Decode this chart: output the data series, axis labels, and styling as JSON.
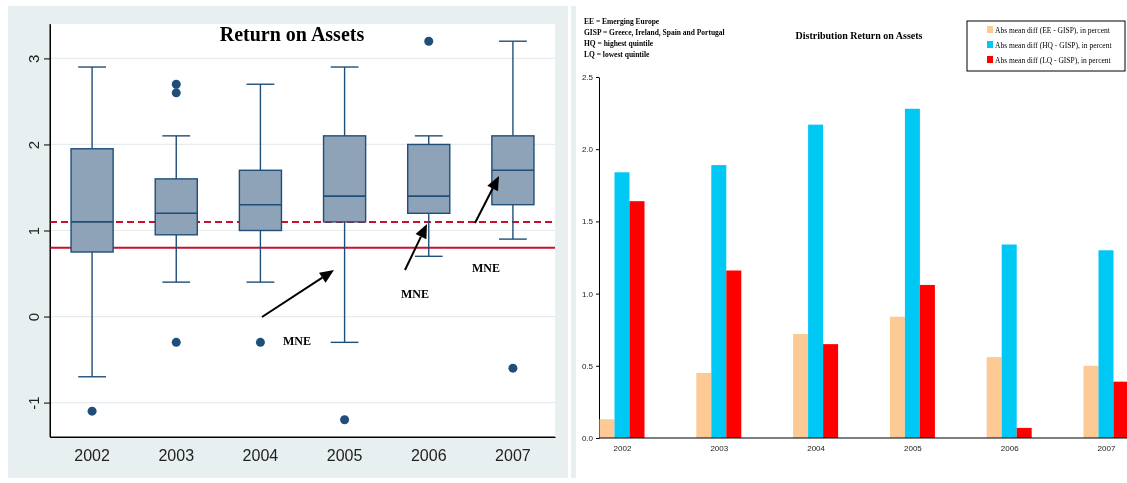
{
  "chart_data": [
    {
      "type": "box",
      "title": "Return on Assets",
      "categories": [
        "2002",
        "2003",
        "2004",
        "2005",
        "2006",
        "2007"
      ],
      "color": "#8fa3b8",
      "ylim": [
        -1.4,
        3.4
      ],
      "yticks": [
        -1,
        0,
        1,
        2,
        3
      ],
      "grid": "y",
      "boxes": [
        {
          "low": -0.7,
          "q1": 0.75,
          "median": 1.1,
          "q3": 1.95,
          "high": 2.9,
          "outliers": [
            -1.1
          ]
        },
        {
          "low": 0.4,
          "q1": 0.95,
          "median": 1.2,
          "q3": 1.6,
          "high": 2.1,
          "outliers": [
            2.7,
            2.6,
            -0.3
          ]
        },
        {
          "low": 0.4,
          "q1": 1.0,
          "median": 1.3,
          "q3": 1.7,
          "high": 2.7,
          "outliers": [
            -0.3
          ]
        },
        {
          "low": -0.3,
          "q1": 1.1,
          "median": 1.4,
          "q3": 2.1,
          "high": 2.9,
          "outliers": [
            -1.2
          ]
        },
        {
          "low": 0.7,
          "q1": 1.2,
          "median": 1.4,
          "q3": 2.0,
          "high": 2.1,
          "outliers": [
            3.2
          ]
        },
        {
          "low": 0.9,
          "q1": 1.3,
          "median": 1.7,
          "q3": 2.1,
          "high": 3.2,
          "outliers": [
            -0.6
          ]
        }
      ],
      "ref_lines": [
        {
          "axis": "y",
          "value": 1.1,
          "color": "#c8102e",
          "line_style": "dashed"
        },
        {
          "axis": "y",
          "value": 0.8,
          "color": "#c8102e",
          "line_style": "solid"
        }
      ],
      "annotations": [
        "MNE",
        "MNE",
        "MNE"
      ]
    },
    {
      "type": "bar",
      "title": "Distribution Return on Assets",
      "categories": [
        "2002",
        "2003",
        "2004",
        "2005",
        "2006",
        "2007"
      ],
      "ylim": [
        0,
        2.5
      ],
      "yticks": [
        {
          "value": 0,
          "label": "0.0"
        },
        {
          "value": 0.5,
          "label": "0.5"
        },
        {
          "value": 1,
          "label": "1.0"
        },
        {
          "value": 1.5,
          "label": "1.5"
        },
        {
          "value": 2,
          "label": "2.0"
        },
        {
          "value": 2.5,
          "label": "2.5"
        }
      ],
      "legend": "top right",
      "series": [
        {
          "name": "Abs mean diff (EE - GISP), in percent",
          "color": "#fdc994",
          "values": [
            0.13,
            0.45,
            0.72,
            0.84,
            0.56,
            0.5
          ]
        },
        {
          "name": "Abs mean diff (HQ - GISP), in percent",
          "color": "#00c8f5",
          "values": [
            1.84,
            1.89,
            2.17,
            2.28,
            1.34,
            1.3
          ]
        },
        {
          "name": "Abs mean diff (LQ - GISP), in percent",
          "color": "#ff0000",
          "values": [
            1.64,
            1.16,
            0.65,
            1.06,
            0.07,
            0.39
          ]
        }
      ],
      "annotations": [
        "EE = Emerging Europe",
        "GISP = Greece, Ireland, Spain and Portugal",
        "HQ = highest quintile",
        "LQ = lowest quintile"
      ]
    }
  ]
}
